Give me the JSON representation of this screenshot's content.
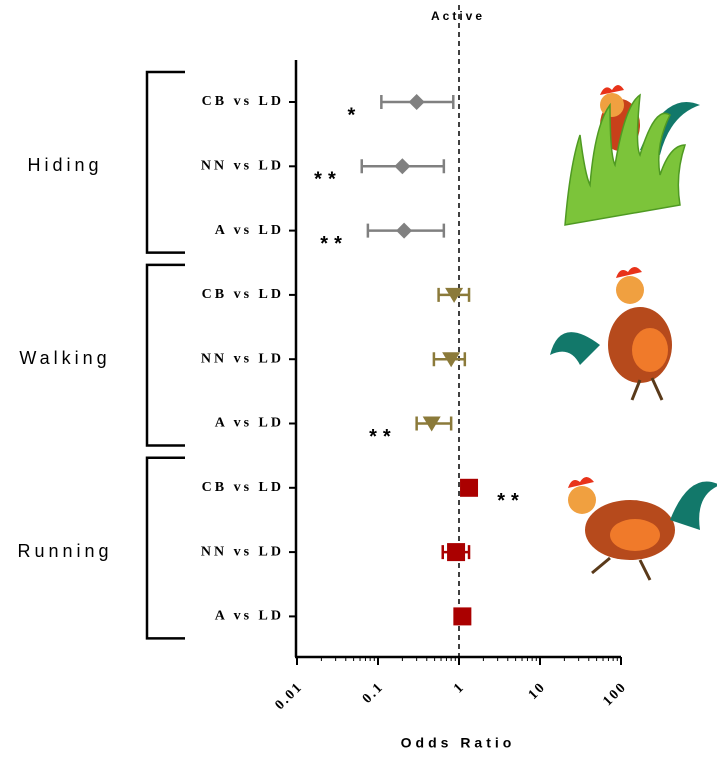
{
  "chart_data": {
    "type": "forest",
    "title": "Active",
    "x_label": "Odds Ratio",
    "xscale": "log",
    "xlim": [
      0.01,
      100
    ],
    "xticks": [
      0.01,
      0.1,
      1,
      10,
      100
    ],
    "reference_line": 1,
    "series": [
      {
        "name": "Hiding",
        "color": "#808080",
        "marker": "diamond",
        "rows": [
          {
            "label": "CB vs LD",
            "value": 0.3,
            "lower": 0.11,
            "upper": 0.85,
            "significance": "*"
          },
          {
            "label": "NN vs LD",
            "value": 0.2,
            "lower": 0.063,
            "upper": 0.65,
            "significance": "**"
          },
          {
            "label": "A vs LD",
            "value": 0.21,
            "lower": 0.075,
            "upper": 0.65,
            "significance": "**"
          }
        ]
      },
      {
        "name": "Walking",
        "color": "#8b7a3a",
        "marker": "triangle-down",
        "rows": [
          {
            "label": "CB vs LD",
            "value": 0.87,
            "lower": 0.56,
            "upper": 1.33,
            "significance": null
          },
          {
            "label": "NN vs LD",
            "value": 0.8,
            "lower": 0.49,
            "upper": 1.18,
            "significance": null
          },
          {
            "label": "A vs LD",
            "value": 0.46,
            "lower": 0.3,
            "upper": 0.8,
            "significance": "**"
          }
        ]
      },
      {
        "name": "Running",
        "color": "#aa0000",
        "marker": "square",
        "rows": [
          {
            "label": "CB vs LD",
            "value": 1.33,
            "lower": 1.2,
            "upper": 1.5,
            "significance": "**"
          },
          {
            "label": "NN vs LD",
            "value": 0.92,
            "lower": 0.63,
            "upper": 1.33,
            "significance": null
          },
          {
            "label": "A vs LD",
            "value": 1.1,
            "lower": 1.0,
            "upper": 1.2,
            "significance": null
          }
        ]
      }
    ]
  }
}
